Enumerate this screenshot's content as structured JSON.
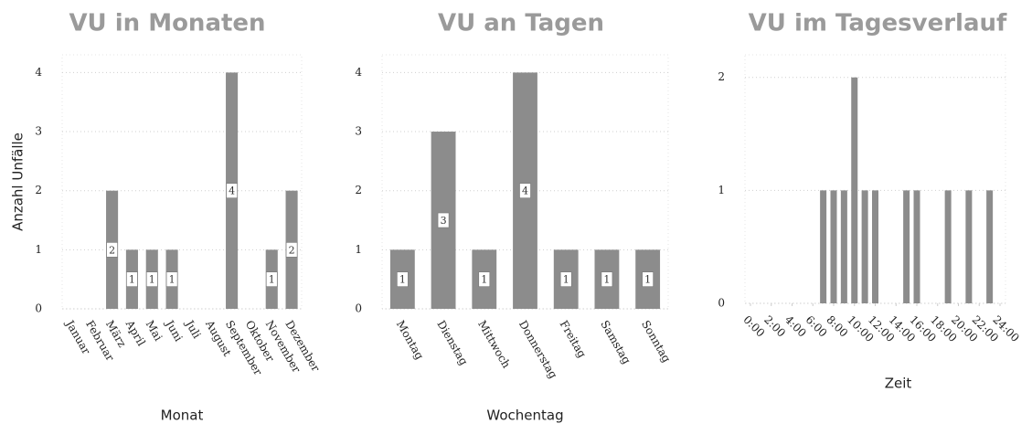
{
  "chart_data": [
    {
      "type": "bar",
      "title": "VU in Monaten",
      "ylabel": "Anzahl Unfälle",
      "xlabel": "Monat",
      "categories": [
        "Januar",
        "Februar",
        "März",
        "April",
        "Mai",
        "Juni",
        "Juli",
        "August",
        "September",
        "Oktober",
        "November",
        "Dezember"
      ],
      "values": [
        0,
        0,
        2,
        1,
        1,
        1,
        0,
        0,
        4,
        0,
        1,
        2
      ],
      "color": "#8c8c8c",
      "ylim": [
        0,
        4.3
      ],
      "yticks": [
        0,
        1,
        2,
        3,
        4
      ],
      "grid": true
    },
    {
      "type": "bar",
      "title": "VU an Tagen",
      "xlabel": "Wochentag",
      "categories": [
        "Montag",
        "Dienstag",
        "Mittwoch",
        "Donnerstag",
        "Freitag",
        "Samstag",
        "Sonntag"
      ],
      "values": [
        1,
        3,
        1,
        4,
        1,
        1,
        1
      ],
      "color": "#8c8c8c",
      "ylim": [
        0,
        4.3
      ],
      "yticks": [
        0,
        1,
        2,
        3,
        4
      ],
      "grid": true
    },
    {
      "type": "histogram",
      "title": "VU im Tagesverlauf",
      "xlabel": "Zeit",
      "x": [
        7,
        8,
        9,
        10,
        11,
        12,
        15,
        16,
        19,
        21,
        23
      ],
      "values": [
        1,
        1,
        1,
        2,
        1,
        1,
        1,
        1,
        1,
        1,
        1
      ],
      "color": "#8c8c8c",
      "xlim": [
        0,
        24
      ],
      "xticks": [
        {
          "value": 0,
          "label": "0:00"
        },
        {
          "value": 2,
          "label": "2:00"
        },
        {
          "value": 4,
          "label": "4:00"
        },
        {
          "value": 6,
          "label": "6:00"
        },
        {
          "value": 8,
          "label": "8:00"
        },
        {
          "value": 10,
          "label": "10:00"
        },
        {
          "value": 12,
          "label": "12:00"
        },
        {
          "value": 14,
          "label": "14:00"
        },
        {
          "value": 16,
          "label": "16:00"
        },
        {
          "value": 18,
          "label": "18:00"
        },
        {
          "value": 20,
          "label": "20:00"
        },
        {
          "value": 22,
          "label": "22:00"
        },
        {
          "value": 24,
          "label": "24:00"
        }
      ],
      "ylim": [
        0,
        2.2
      ],
      "yticks": [
        0,
        1,
        2
      ],
      "grid": true
    }
  ]
}
